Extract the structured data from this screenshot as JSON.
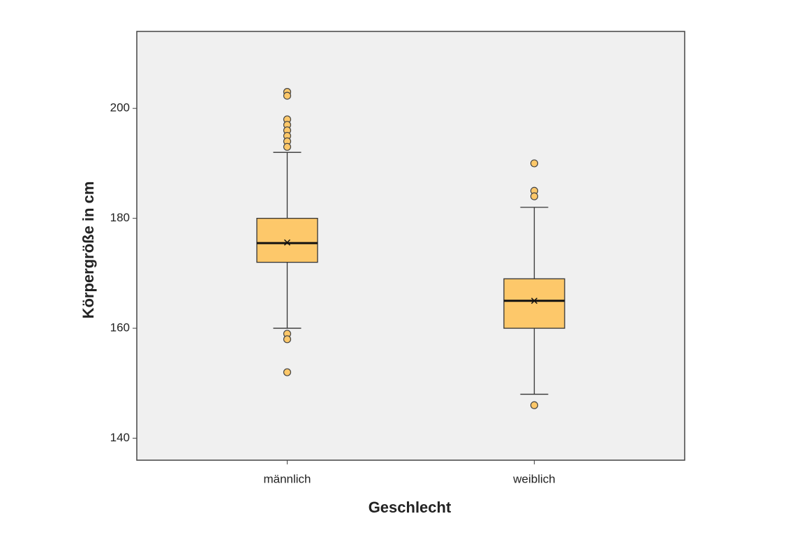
{
  "chart_data": {
    "type": "box",
    "x_label": "Geschlecht",
    "y_label": "Körpergröße in cm",
    "categories": [
      "männlich",
      "weiblich"
    ],
    "color": "#fdc86a",
    "background": "#f0f0f0",
    "boxes": [
      {
        "whisker_low": 160,
        "q1": 172,
        "median": 175.5,
        "q3": 180,
        "whisker_high": 192,
        "mean": 175.6,
        "outliers": [
          203,
          202.3,
          198,
          197,
          196,
          195,
          194,
          193,
          159,
          158,
          152
        ]
      },
      {
        "whisker_low": 148,
        "q1": 160,
        "median": 165,
        "q3": 169,
        "whisker_high": 182,
        "mean": 165,
        "outliers": [
          190,
          185,
          184,
          146
        ]
      }
    ],
    "ylim": [
      136,
      214
    ],
    "yticks": [
      140,
      160,
      180,
      200
    ]
  }
}
